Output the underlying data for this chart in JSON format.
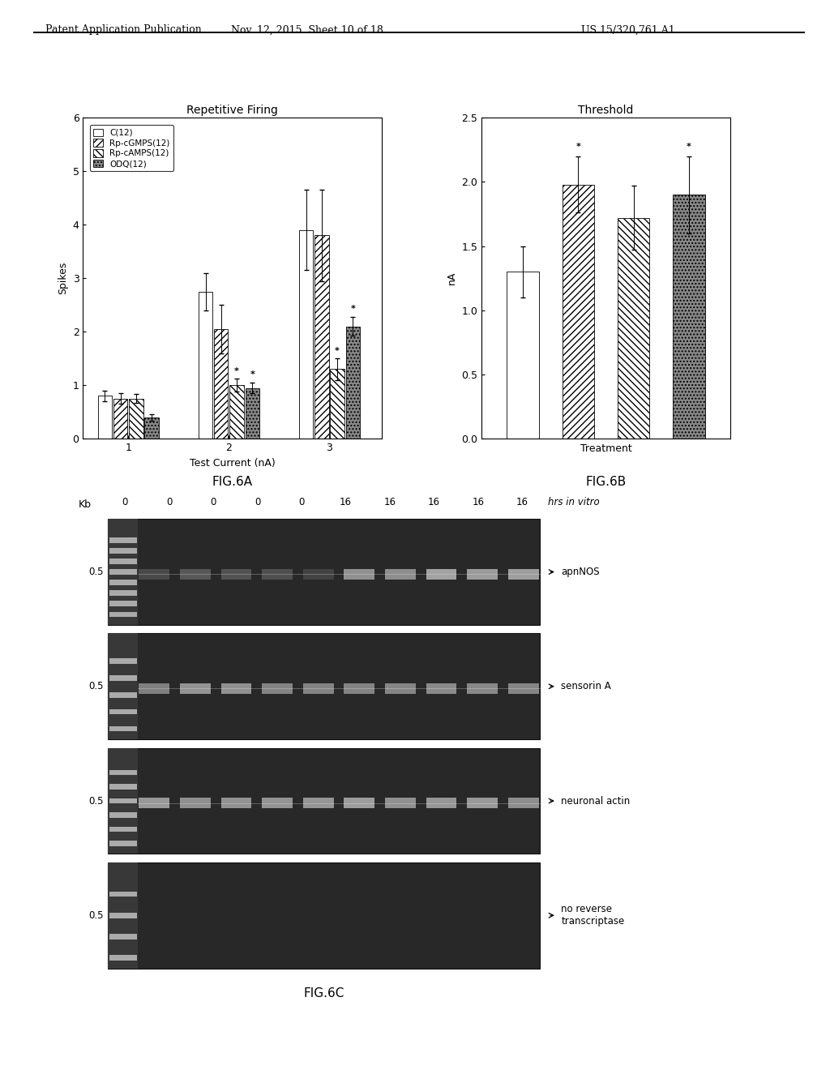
{
  "fig6a_title": "Repetitive Firing",
  "fig6a_ylabel": "Spikes",
  "fig6a_xlabel": "Test Current (nA)",
  "fig6a_ylim": [
    0,
    6
  ],
  "fig6a_yticks": [
    0,
    1,
    2,
    3,
    4,
    5,
    6
  ],
  "fig6a_xticks": [
    1,
    2,
    3
  ],
  "fig6a_legend": [
    "C(12)",
    "Rp-cGMPS(12)",
    "Rp-cAMPS(12)",
    "ODQ(12)"
  ],
  "fig6a_C": [
    0.8,
    2.75,
    3.9
  ],
  "fig6a_RpcGMPS": [
    0.75,
    2.05,
    3.8
  ],
  "fig6a_RpcAMPS": [
    0.75,
    1.0,
    1.3
  ],
  "fig6a_ODQ": [
    0.4,
    0.95,
    2.1
  ],
  "fig6a_C_err": [
    0.1,
    0.35,
    0.75
  ],
  "fig6a_RpcGMPS_err": [
    0.1,
    0.45,
    0.85
  ],
  "fig6a_RpcAMPS_err": [
    0.08,
    0.12,
    0.2
  ],
  "fig6a_ODQ_err": [
    0.06,
    0.1,
    0.18
  ],
  "fig6a_stars_C": [
    false,
    false,
    false
  ],
  "fig6a_stars_RpcGMPS": [
    false,
    false,
    false
  ],
  "fig6a_stars_RpcAMPS": [
    false,
    true,
    true
  ],
  "fig6a_stars_ODQ": [
    false,
    true,
    true
  ],
  "fig6b_title": "Threshold",
  "fig6b_ylabel": "nA",
  "fig6b_xlabel": "Treatment",
  "fig6b_ylim": [
    0,
    2.5
  ],
  "fig6b_yticks": [
    0,
    0.5,
    1.0,
    1.5,
    2.0,
    2.5
  ],
  "fig6b_data": [
    1.3,
    1.98,
    1.72,
    1.9
  ],
  "fig6b_errors": [
    0.2,
    0.22,
    0.25,
    0.3
  ],
  "fig6b_stars": [
    false,
    true,
    false,
    true
  ],
  "fig6c_time_labels": [
    "0",
    "0",
    "0",
    "0",
    "0",
    "16",
    "16",
    "16",
    "16",
    "16"
  ],
  "fig6c_hrs_label": "hrs in vitro",
  "fig6c_gene_labels": [
    "apnNOS",
    "sensorin A",
    "neuronal actin",
    "no reverse\ntranscriptase"
  ],
  "fig6a_label": "FIG.6A",
  "fig6b_label": "FIG.6B",
  "fig6c_label": "FIG.6C",
  "header_left": "Patent Application Publication",
  "header_mid": "Nov. 12, 2015  Sheet 10 of 18",
  "header_right": "US 15/320,761 A1"
}
